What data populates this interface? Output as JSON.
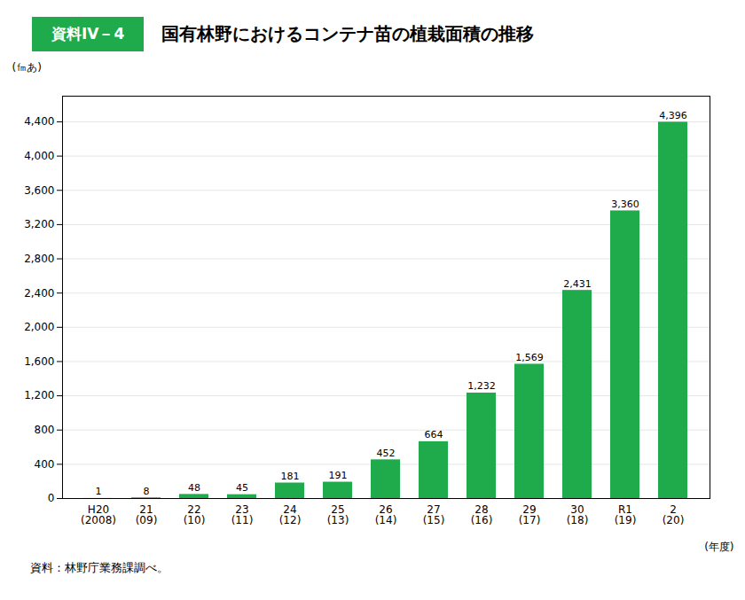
{
  "chart_data": {
    "type": "bar",
    "title": "国有林野におけるコンテナ苗の植栽面積の推移",
    "annotations": [
      "資料IV－4",
      "資料：林野庁業務課調べ。"
    ],
    "xlabel": "(年度)",
    "ylabel": "(㎙あ)",
    "categories": [
      "H20\n(2008)",
      "21\n(09)",
      "22\n(10)",
      "23\n(11)",
      "24\n(12)",
      "25\n(13)",
      "26\n(14)",
      "27\n(15)",
      "28\n(16)",
      "29\n(17)",
      "30\n(18)",
      "R1\n(19)",
      "2\n(20)"
    ],
    "values": [
      1,
      8,
      48,
      45,
      181,
      191,
      452,
      664,
      1232,
      1569,
      2431,
      3360,
      4396
    ],
    "value_labels": [
      "1",
      "8",
      "48",
      "45",
      "181",
      "191",
      "452",
      "664",
      "1,232",
      "1,569",
      "2,431",
      "3,360",
      "4,396"
    ],
    "data_labels": true,
    "color": "#1faa4b",
    "ylim": [
      0,
      4700
    ],
    "yticks": [
      0,
      400,
      800,
      {
        "value": 1200,
        "label": "1,200"
      },
      {
        "value": 1600,
        "label": "1,600"
      },
      {
        "value": 2000,
        "label": "2,000"
      },
      {
        "value": 2400,
        "label": "2,400"
      },
      {
        "value": 2800,
        "label": "2,800"
      },
      {
        "value": 3200,
        "label": "3,200"
      },
      {
        "value": 3600,
        "label": "3,600"
      },
      {
        "value": 4000,
        "label": "4,000"
      },
      {
        "value": 4400,
        "label": "4,400"
      }
    ],
    "grid": true
  }
}
